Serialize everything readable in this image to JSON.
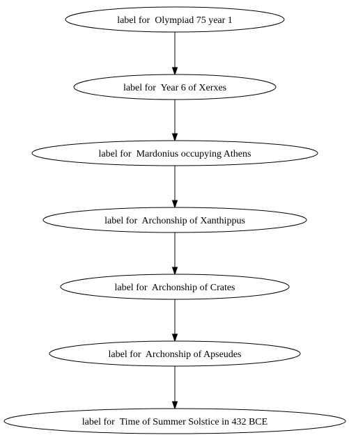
{
  "diagram": {
    "nodes": [
      {
        "id": "n1",
        "label": "label for  Olympiad 75 year 1"
      },
      {
        "id": "n2",
        "label": "label for  Year 6 of Xerxes"
      },
      {
        "id": "n3",
        "label": "label for  Mardonius occupying Athens"
      },
      {
        "id": "n4",
        "label": "label for  Archonship of Xanthippus"
      },
      {
        "id": "n5",
        "label": "label for  Archonship of Crates"
      },
      {
        "id": "n6",
        "label": "label for  Archonship of Apseudes"
      },
      {
        "id": "n7",
        "label": "label for  Time of Summer Solstice in 432 BCE"
      }
    ],
    "edges": [
      {
        "from": "n1",
        "to": "n2"
      },
      {
        "from": "n2",
        "to": "n3"
      },
      {
        "from": "n3",
        "to": "n4"
      },
      {
        "from": "n4",
        "to": "n5"
      },
      {
        "from": "n5",
        "to": "n6"
      },
      {
        "from": "n6",
        "to": "n7"
      }
    ]
  }
}
